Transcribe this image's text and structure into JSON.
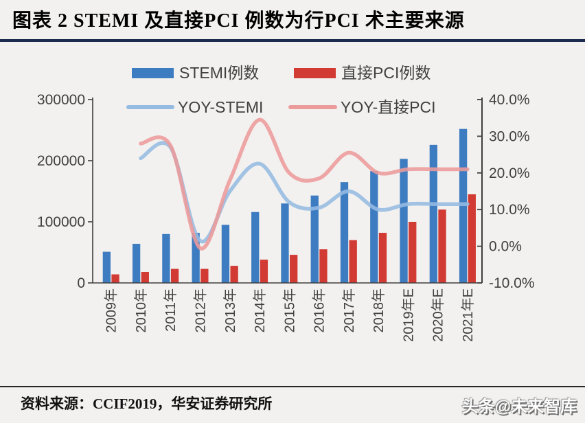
{
  "header": {
    "title": "图表 2 STEMI 及直接PCI 例数为行PCI 术主要来源"
  },
  "footer": {
    "source": "资料来源：CCIF2019，华安证券研究所",
    "watermark": "头条@未来智库"
  },
  "theme": {
    "background": "#f2f1ef",
    "title_color": "#000000",
    "underline_color": "#1c2b4e",
    "axis_color": "#3f3f3f",
    "label_color": "#404040",
    "footer_rule_color": "#262626"
  },
  "chart_data": {
    "type": "combo-bar-line",
    "categories": [
      "2009年",
      "2010年",
      "2011年",
      "2012年",
      "2013年",
      "2014年",
      "2015年",
      "2016年",
      "2017年",
      "2018年",
      "2019年E",
      "2020年E",
      "2021年E"
    ],
    "bar_series": [
      {
        "name": "STEMI例数",
        "color": "#3e7cc1",
        "yaxis": "left",
        "values": [
          51000,
          64000,
          80000,
          82000,
          95000,
          116000,
          130000,
          143000,
          165000,
          183000,
          203000,
          226000,
          252000
        ]
      },
      {
        "name": "直接PCI例数",
        "color": "#d23b34",
        "yaxis": "left",
        "values": [
          14000,
          18000,
          23000,
          23000,
          28000,
          38000,
          46000,
          55000,
          70000,
          82000,
          100000,
          120000,
          145000
        ]
      }
    ],
    "line_series": [
      {
        "name": "YOY-STEMI",
        "color": "#96bbe2",
        "yaxis": "right",
        "values_pct": [
          null,
          24,
          27,
          1.5,
          15,
          22.5,
          12,
          10.5,
          15,
          10,
          11.5,
          11.5,
          11.5
        ]
      },
      {
        "name": "YOY-直接PCI",
        "color": "#ec9b9b",
        "yaxis": "right",
        "values_pct": [
          null,
          28,
          27.5,
          -0.5,
          18,
          34.5,
          20,
          18.5,
          25.5,
          20,
          21,
          21,
          21
        ]
      }
    ],
    "left_axis": {
      "min": 0,
      "max": 300000,
      "tick_labels": [
        "300000",
        "200000",
        "100000",
        "0"
      ],
      "tick_values": [
        300000,
        200000,
        100000,
        0
      ]
    },
    "right_axis": {
      "min": -10,
      "max": 40,
      "tick_labels": [
        "40.0%",
        "30.0%",
        "20.0%",
        "10.0%",
        "0.0%",
        "-10.0%"
      ],
      "tick_values": [
        40,
        30,
        20,
        10,
        0,
        -10
      ]
    },
    "legend_position": "top",
    "grid": false
  }
}
